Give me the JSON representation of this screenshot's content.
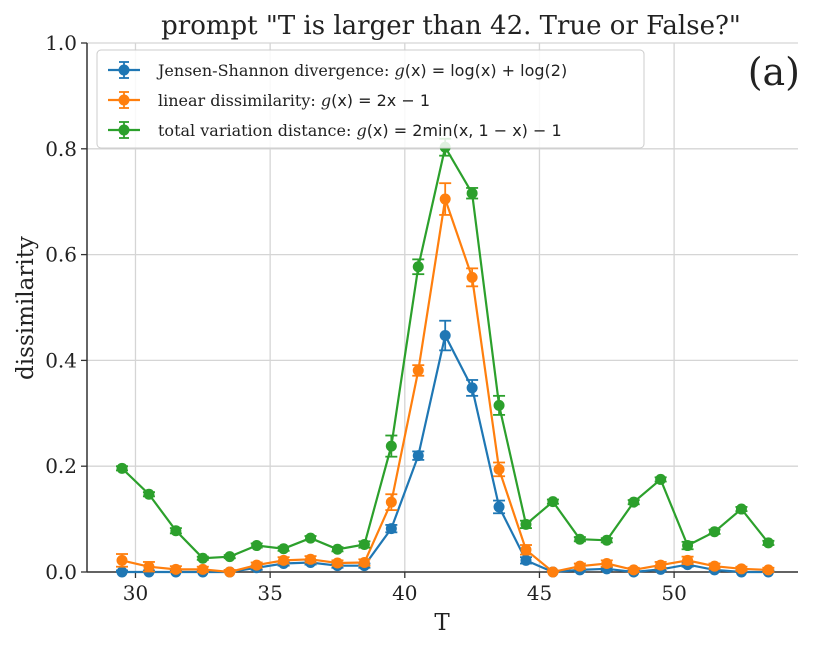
{
  "chart_data": {
    "type": "line",
    "title": "prompt \"T is larger than 42. True or False?\"",
    "xlabel": "T",
    "ylabel": "dissimilarity",
    "panel_label": "(a)",
    "xlim": [
      28.2,
      54.6
    ],
    "ylim": [
      0,
      1.0
    ],
    "xticks": [
      30,
      35,
      40,
      45,
      50
    ],
    "yticks": [
      0.0,
      0.2,
      0.4,
      0.6,
      0.8,
      1.0
    ],
    "ytick_labels": [
      "0.0",
      "0.2",
      "0.4",
      "0.6",
      "0.8",
      "1.0"
    ],
    "grid": true,
    "legend_position": "top-left",
    "x": [
      29.5,
      30.5,
      31.5,
      32.5,
      33.5,
      34.5,
      35.5,
      36.5,
      37.5,
      38.5,
      39.5,
      40.5,
      41.5,
      42.5,
      43.5,
      44.5,
      45.5,
      46.5,
      47.5,
      48.5,
      49.5,
      50.5,
      51.5,
      52.5,
      53.5
    ],
    "series": [
      {
        "name": "Jensen-Shannon divergence:",
        "formula": [
          "g",
          "(x) = log(x) + log(2)"
        ],
        "color": "#1f77b4",
        "values": [
          0.0,
          0.0,
          0.0,
          0.0,
          0.0,
          0.008,
          0.016,
          0.018,
          0.012,
          0.012,
          0.082,
          0.22,
          0.447,
          0.348,
          0.123,
          0.022,
          0.0,
          0.004,
          0.006,
          0.0,
          0.005,
          0.014,
          0.004,
          0.0,
          0.0
        ],
        "errors": [
          0.003,
          0.003,
          0.003,
          0.003,
          0.003,
          0.004,
          0.004,
          0.004,
          0.004,
          0.004,
          0.007,
          0.008,
          0.028,
          0.015,
          0.012,
          0.006,
          0.003,
          0.003,
          0.003,
          0.003,
          0.003,
          0.004,
          0.003,
          0.003,
          0.003
        ]
      },
      {
        "name": "linear dissimilarity:",
        "formula": [
          "g",
          "(x) = 2x − 1"
        ],
        "color": "#ff7f0e",
        "values": [
          0.022,
          0.01,
          0.005,
          0.005,
          0.0,
          0.013,
          0.022,
          0.024,
          0.017,
          0.018,
          0.132,
          0.381,
          0.705,
          0.557,
          0.194,
          0.042,
          0.0,
          0.011,
          0.016,
          0.004,
          0.013,
          0.022,
          0.011,
          0.006,
          0.004
        ],
        "errors": [
          0.012,
          0.009,
          0.006,
          0.005,
          0.004,
          0.005,
          0.006,
          0.006,
          0.005,
          0.006,
          0.015,
          0.01,
          0.03,
          0.017,
          0.013,
          0.009,
          0.003,
          0.005,
          0.006,
          0.004,
          0.006,
          0.007,
          0.005,
          0.004,
          0.004
        ]
      },
      {
        "name": "total variation distance:",
        "formula": [
          "g",
          "(x) = 2min(x, 1 − x) − 1"
        ],
        "color": "#2ca02c",
        "values": [
          0.196,
          0.147,
          0.078,
          0.026,
          0.029,
          0.05,
          0.044,
          0.064,
          0.043,
          0.052,
          0.238,
          0.577,
          0.803,
          0.716,
          0.315,
          0.09,
          0.133,
          0.062,
          0.06,
          0.132,
          0.175,
          0.05,
          0.076,
          0.119,
          0.055
        ],
        "errors": [
          0.004,
          0.004,
          0.005,
          0.003,
          0.003,
          0.004,
          0.004,
          0.004,
          0.004,
          0.006,
          0.02,
          0.014,
          0.016,
          0.01,
          0.018,
          0.007,
          0.004,
          0.004,
          0.004,
          0.004,
          0.004,
          0.007,
          0.004,
          0.004,
          0.004
        ]
      }
    ]
  }
}
